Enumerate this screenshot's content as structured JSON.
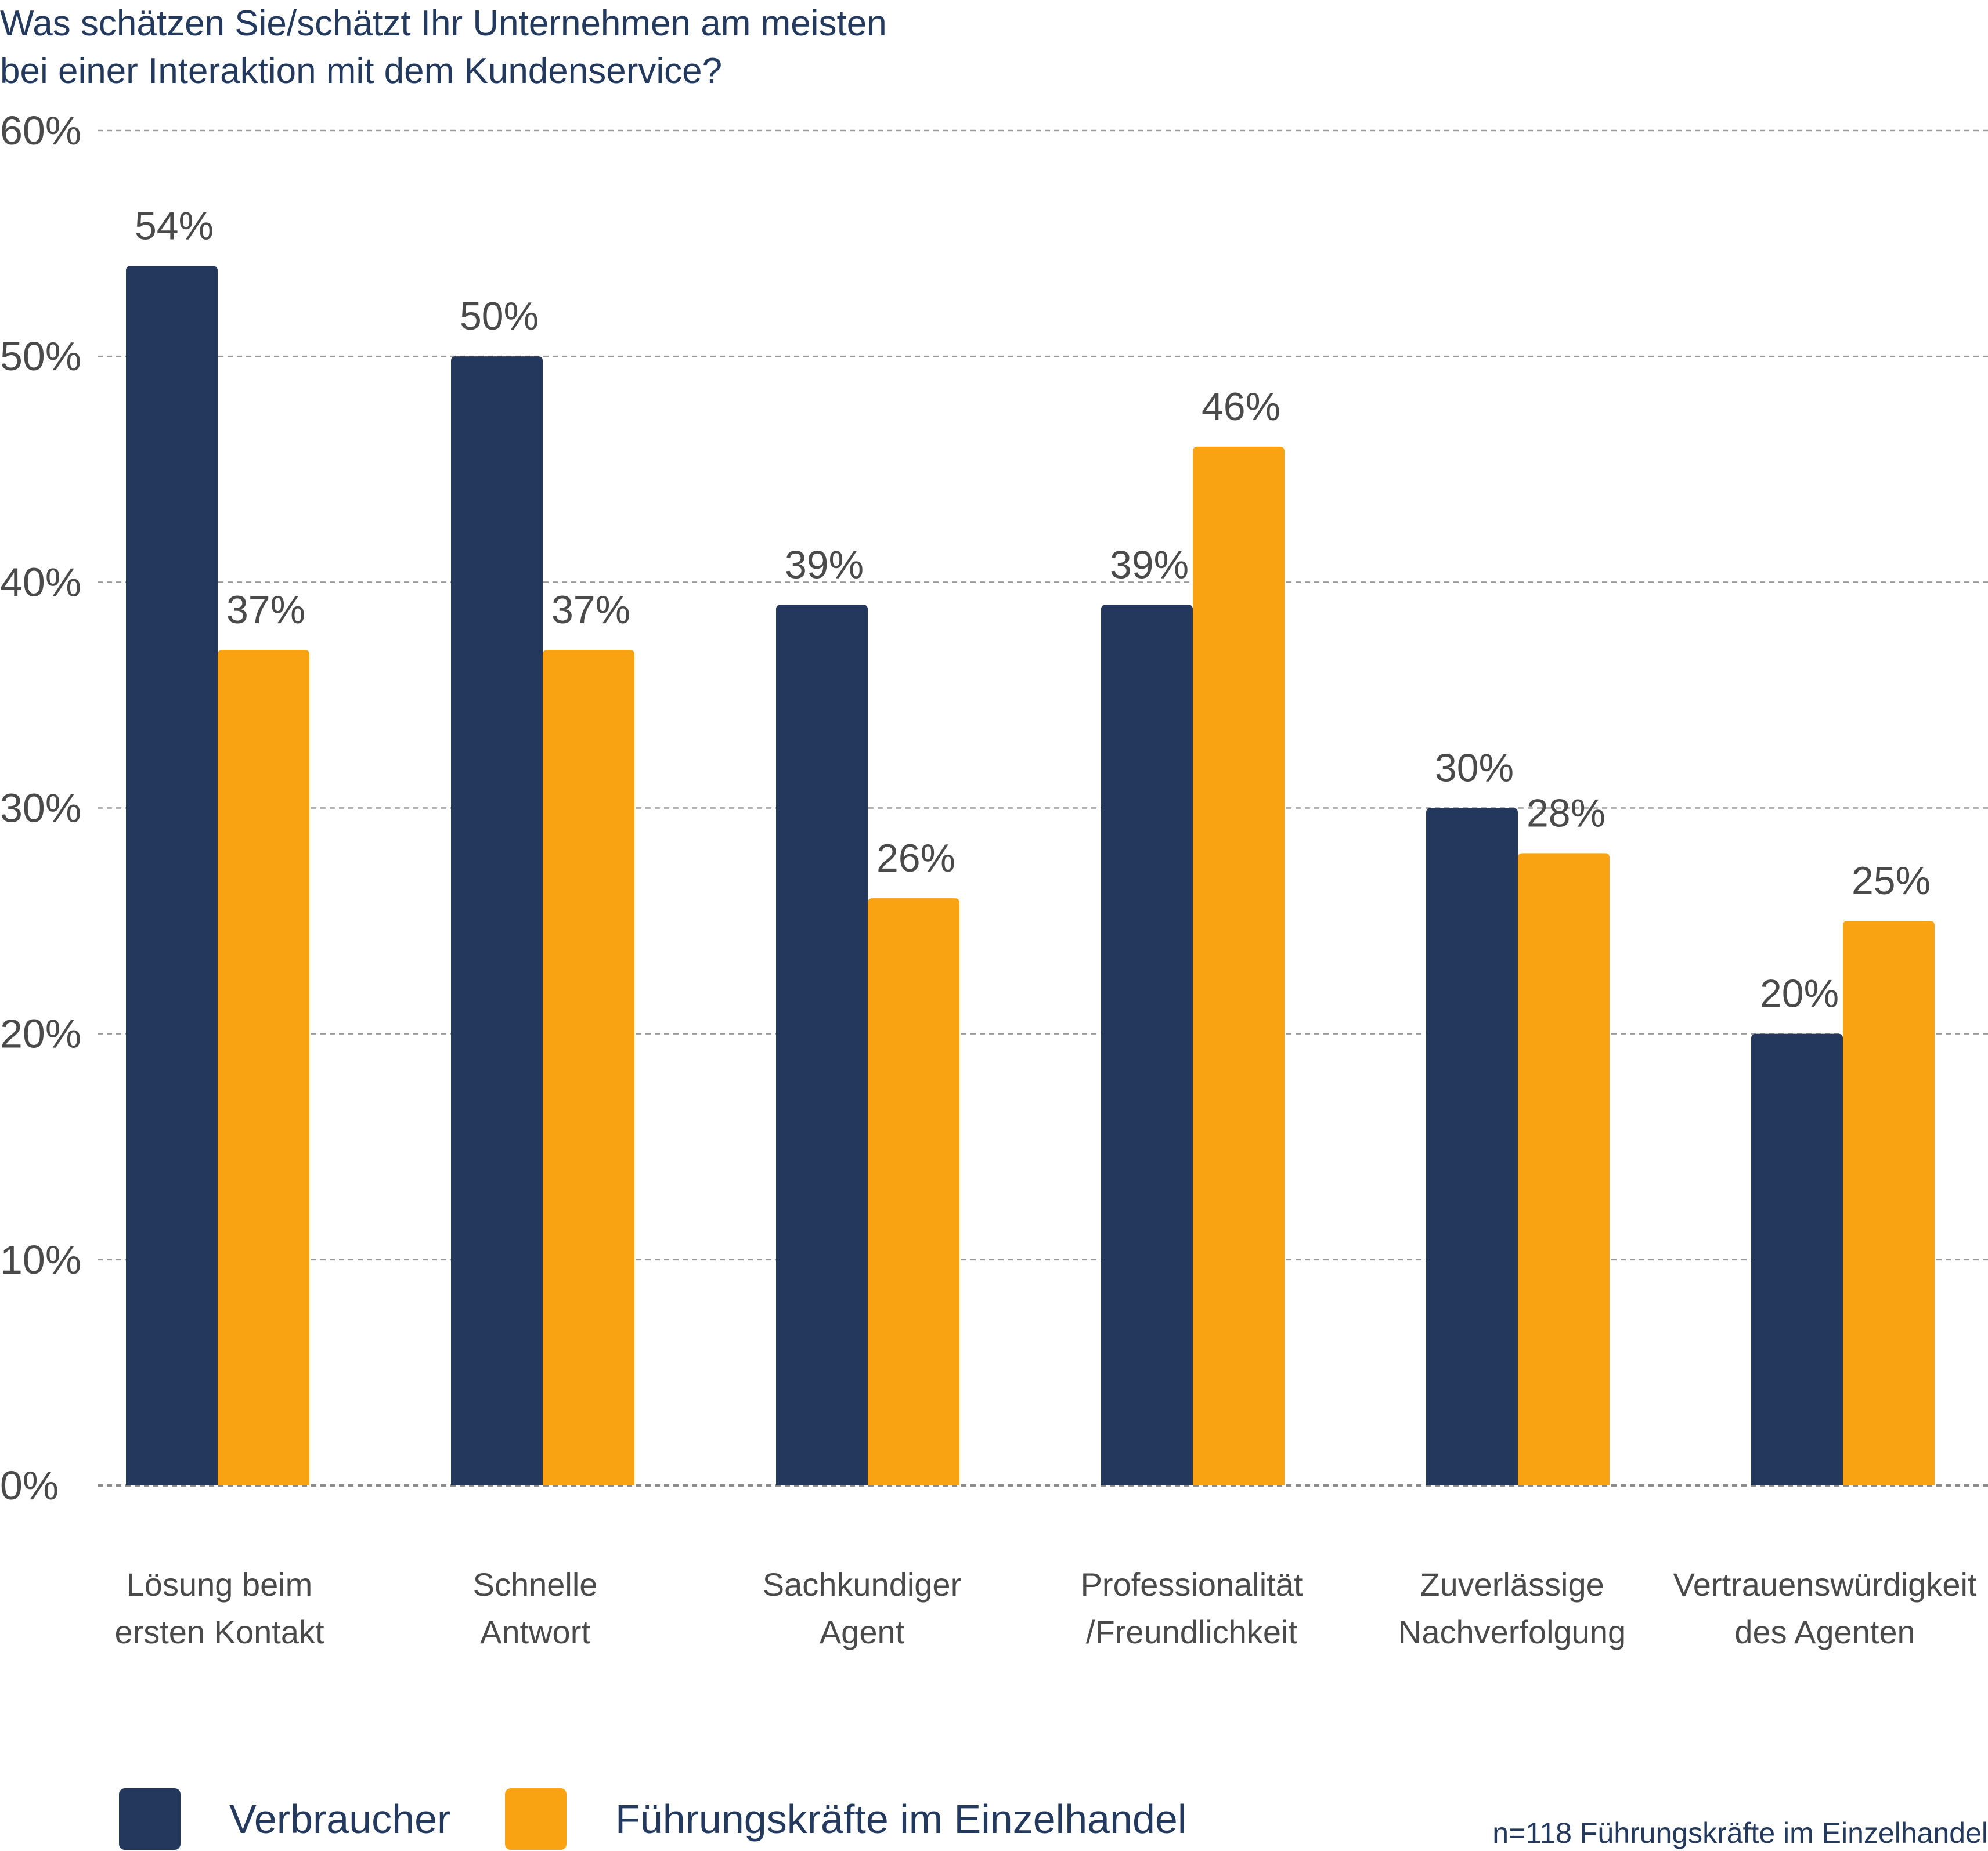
{
  "chart_data": {
    "type": "bar",
    "title_lines": [
      "Was schätzen Sie/schätzt Ihr Unternehmen am meisten",
      "bei einer Interaktion mit dem Kundenservice?"
    ],
    "categories": [
      [
        "Lösung beim",
        "ersten Kontakt"
      ],
      [
        "Schnelle",
        "Antwort"
      ],
      [
        "Sachkundiger",
        "Agent"
      ],
      [
        "Professionalität",
        "/Freundlichkeit"
      ],
      [
        "Zuverlässige",
        "Nachverfolgung"
      ],
      [
        "Vertrauenswürdigkeit",
        "des Agenten"
      ]
    ],
    "series": [
      {
        "name": "Verbraucher",
        "color": "#24375c",
        "values": [
          54,
          50,
          39,
          39,
          30,
          20
        ]
      },
      {
        "name": "Führungskräfte im Einzelhandel",
        "color": "#f9a312",
        "values": [
          37,
          37,
          26,
          46,
          28,
          25
        ]
      }
    ],
    "value_suffix": "%",
    "ylim": [
      0,
      60
    ],
    "yticks": [
      "0%",
      "10%",
      "20%",
      "30%",
      "40%",
      "50%",
      "60%"
    ],
    "ytick_values": [
      0,
      10,
      20,
      30,
      40,
      50,
      60
    ],
    "grid": true,
    "legend_position": "bottom-left",
    "note": "n=118 Führungskräfte im Einzelhandel"
  }
}
